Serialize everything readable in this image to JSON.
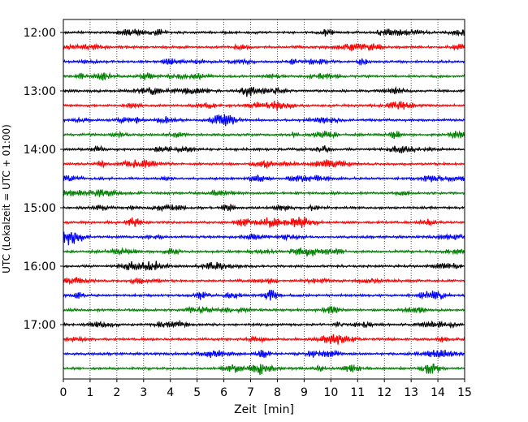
{
  "chart_data": {
    "type": "line",
    "title": "",
    "xlabel": "Zeit  [min]",
    "ylabel": "UTC (Lokalzeit = UTC + 01:00)",
    "xlim": [
      0,
      15
    ],
    "x_ticks": [
      "0",
      "1",
      "2",
      "3",
      "4",
      "5",
      "6",
      "7",
      "8",
      "9",
      "10",
      "11",
      "12",
      "13",
      "14",
      "15"
    ],
    "y_ticks": [
      "12:00",
      "13:00",
      "14:00",
      "15:00",
      "16:00",
      "17:00"
    ],
    "grid_x": "dotted vertical lines at each minute",
    "trace_interval_min": 15,
    "trace_start": "12:00",
    "trace_end": "17:45",
    "trace_color_cycle": [
      "#000000",
      "#ff0000",
      "#0000ff",
      "#007f00"
    ],
    "traces": [
      {
        "start": "12:00",
        "color": "#000000"
      },
      {
        "start": "12:15",
        "color": "#ff0000"
      },
      {
        "start": "12:30",
        "color": "#0000ff"
      },
      {
        "start": "12:45",
        "color": "#007f00"
      },
      {
        "start": "13:00",
        "color": "#000000"
      },
      {
        "start": "13:15",
        "color": "#ff0000"
      },
      {
        "start": "13:30",
        "color": "#0000ff"
      },
      {
        "start": "13:45",
        "color": "#007f00"
      },
      {
        "start": "14:00",
        "color": "#000000"
      },
      {
        "start": "14:15",
        "color": "#ff0000"
      },
      {
        "start": "14:30",
        "color": "#0000ff"
      },
      {
        "start": "14:45",
        "color": "#007f00"
      },
      {
        "start": "15:00",
        "color": "#000000"
      },
      {
        "start": "15:15",
        "color": "#ff0000"
      },
      {
        "start": "15:30",
        "color": "#0000ff"
      },
      {
        "start": "15:45",
        "color": "#007f00"
      },
      {
        "start": "16:00",
        "color": "#000000"
      },
      {
        "start": "16:15",
        "color": "#ff0000"
      },
      {
        "start": "16:30",
        "color": "#0000ff"
      },
      {
        "start": "16:45",
        "color": "#007f00"
      },
      {
        "start": "17:00",
        "color": "#000000"
      },
      {
        "start": "17:15",
        "color": "#ff0000"
      },
      {
        "start": "17:30",
        "color": "#0000ff"
      },
      {
        "start": "17:45",
        "color": "#007f00"
      }
    ]
  }
}
